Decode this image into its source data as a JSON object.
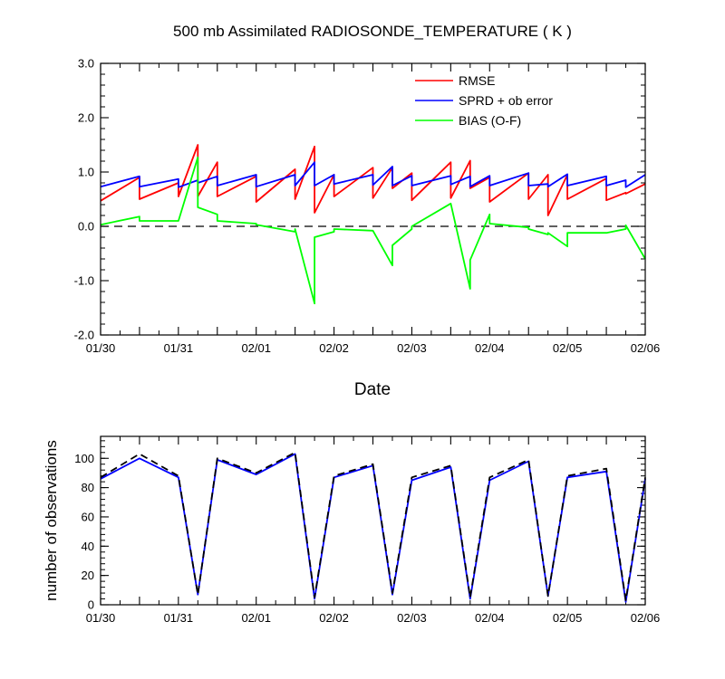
{
  "colors": {
    "rmse": "#ff0000",
    "sprd": "#0000ff",
    "bias": "#00ff00",
    "zero_line": "#000000",
    "obs_assim": "#0000ff",
    "obs_total": "#000000"
  },
  "chart_data": [
    {
      "type": "line",
      "title": "500 mb Assimilated RADIOSONDE_TEMPERATURE ( K )",
      "xlabel": "Date",
      "ylabel": "",
      "x_type": "date",
      "x_start": "01/30",
      "x_end": "02/06",
      "x_ticks": [
        "01/30",
        "01/31",
        "02/01",
        "02/02",
        "02/03",
        "02/04",
        "02/05",
        "02/06"
      ],
      "ylim": [
        -2.0,
        3.0
      ],
      "y_ticks": [
        "-2.0",
        "-1.0",
        "0.0",
        "1.0",
        "2.0",
        "3.0"
      ],
      "y_tick_values": [
        -2.0,
        -1.0,
        0.0,
        1.0,
        2.0,
        3.0
      ],
      "reference_line": {
        "y": 0.0,
        "style": "dashed"
      },
      "legend_position": "top-right",
      "legend": [
        "RMSE",
        "SPRD + ob error",
        "BIAS (O-F)"
      ],
      "series": [
        {
          "name": "RMSE",
          "x": [
            0,
            0.5,
            0.5,
            1.0,
            1.0,
            1.25,
            1.25,
            1.5,
            1.5,
            2.0,
            2.0,
            2.5,
            2.5,
            2.75,
            2.75,
            3.0,
            3.0,
            3.5,
            3.5,
            3.75,
            3.75,
            4.0,
            4.0,
            4.5,
            4.5,
            4.75,
            4.75,
            5.0,
            5.0,
            5.5,
            5.5,
            5.75,
            5.75,
            6.0,
            6.0,
            6.5,
            6.5,
            6.75,
            6.75,
            7.0
          ],
          "values": [
            0.47,
            0.9,
            0.5,
            0.8,
            0.55,
            1.5,
            0.55,
            1.18,
            0.55,
            0.92,
            0.45,
            1.05,
            0.5,
            1.47,
            0.25,
            0.95,
            0.55,
            1.08,
            0.52,
            1.08,
            0.7,
            0.98,
            0.48,
            1.18,
            0.52,
            1.21,
            0.7,
            0.9,
            0.45,
            0.98,
            0.5,
            0.95,
            0.2,
            0.95,
            0.5,
            0.88,
            0.48,
            0.62,
            0.6,
            0.78
          ]
        },
        {
          "name": "SPRD + ob error",
          "x": [
            0,
            0.5,
            0.5,
            1.0,
            1.0,
            1.25,
            1.25,
            1.5,
            1.5,
            2.0,
            2.0,
            2.5,
            2.5,
            2.75,
            2.75,
            3.0,
            3.0,
            3.5,
            3.5,
            3.75,
            3.75,
            4.0,
            4.0,
            4.5,
            4.5,
            4.75,
            4.75,
            5.0,
            5.0,
            5.5,
            5.5,
            5.75,
            5.75,
            6.0,
            6.0,
            6.5,
            6.5,
            6.75,
            6.75,
            7.0
          ],
          "values": [
            0.73,
            0.92,
            0.73,
            0.87,
            0.72,
            0.85,
            0.8,
            0.92,
            0.75,
            0.95,
            0.73,
            0.95,
            0.75,
            1.18,
            0.75,
            0.95,
            0.78,
            0.95,
            0.76,
            1.1,
            0.75,
            0.93,
            0.75,
            0.93,
            0.77,
            0.92,
            0.73,
            0.93,
            0.75,
            0.98,
            0.75,
            0.78,
            0.73,
            0.96,
            0.75,
            0.92,
            0.75,
            0.85,
            0.72,
            0.95
          ]
        },
        {
          "name": "BIAS (O-F)",
          "x": [
            0,
            0.5,
            0.5,
            1.0,
            1.0,
            1.25,
            1.25,
            1.5,
            1.5,
            2.0,
            2.0,
            2.5,
            2.5,
            2.75,
            2.75,
            3.0,
            3.0,
            3.5,
            3.5,
            3.75,
            3.75,
            4.0,
            4.0,
            4.5,
            4.5,
            4.75,
            4.75,
            5.0,
            5.0,
            5.5,
            5.5,
            5.75,
            5.75,
            6.0,
            6.0,
            6.5,
            6.5,
            6.75,
            6.75,
            7.0
          ],
          "values": [
            0.03,
            0.18,
            0.1,
            0.1,
            0.1,
            1.27,
            0.35,
            0.22,
            0.1,
            0.05,
            0.03,
            -0.1,
            -0.05,
            -1.42,
            -0.2,
            -0.1,
            -0.05,
            -0.08,
            -0.08,
            -0.72,
            -0.35,
            -0.05,
            0.0,
            0.42,
            0.42,
            -1.15,
            -0.62,
            0.22,
            0.05,
            -0.02,
            -0.05,
            -0.15,
            -0.12,
            -0.37,
            -0.12,
            -0.12,
            -0.12,
            -0.05,
            0.02,
            -0.6
          ]
        }
      ]
    },
    {
      "type": "line",
      "title": "",
      "xlabel": "",
      "ylabel": "number of observations",
      "x_type": "date",
      "x_start": "01/30",
      "x_end": "02/06",
      "x_ticks": [
        "01/30",
        "01/31",
        "02/01",
        "02/02",
        "02/03",
        "02/04",
        "02/05",
        "02/06"
      ],
      "ylim": [
        0,
        115
      ],
      "y_ticks": [
        "0",
        "20",
        "40",
        "60",
        "80",
        "100"
      ],
      "y_tick_values": [
        0,
        20,
        40,
        60,
        80,
        100
      ],
      "series": [
        {
          "style": "solid",
          "x": [
            0,
            0.5,
            1.0,
            1.25,
            1.5,
            2.0,
            2.5,
            2.75,
            3.0,
            3.5,
            3.75,
            4.0,
            4.5,
            4.75,
            5.0,
            5.5,
            5.75,
            6.0,
            6.5,
            6.75,
            7.0
          ],
          "values": [
            86,
            100,
            87,
            7,
            99,
            89,
            103,
            4,
            87,
            95,
            7,
            85,
            94,
            4,
            85,
            98,
            6,
            87,
            91,
            2,
            86
          ]
        },
        {
          "style": "dashed",
          "x": [
            0,
            0.5,
            1.0,
            1.25,
            1.5,
            2.0,
            2.5,
            2.75,
            3.0,
            3.5,
            3.75,
            4.0,
            4.5,
            4.75,
            5.0,
            5.5,
            5.75,
            6.0,
            6.5,
            6.75,
            7.0
          ],
          "values": [
            87,
            103,
            88,
            7,
            100,
            90,
            104,
            5,
            88,
            96,
            8,
            87,
            95,
            5,
            87,
            99,
            6,
            88,
            93,
            3,
            87
          ]
        }
      ]
    }
  ]
}
